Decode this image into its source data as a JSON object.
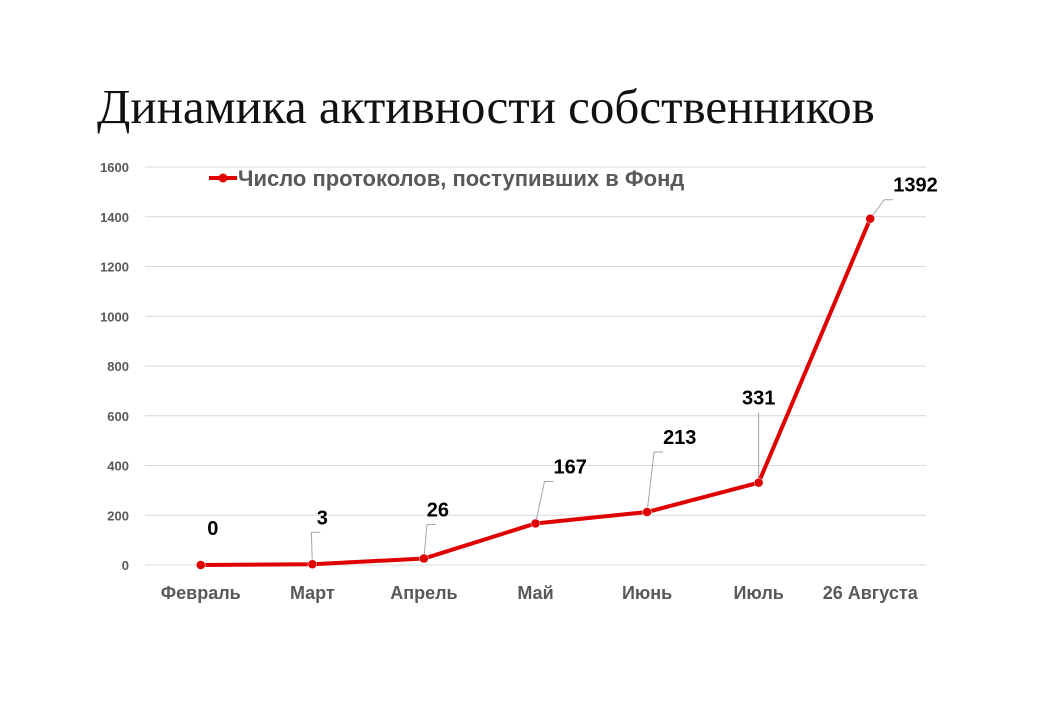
{
  "title": "Динамика активности собственников",
  "colors": {
    "series": "#e00000",
    "grid": "#d9d9d9",
    "axis_text": "#595959",
    "leader": "#a6a6a6"
  },
  "chart_data": {
    "type": "line",
    "categories": [
      "Февраль",
      "Март",
      "Апрель",
      "Май",
      "Июнь",
      "Июль",
      "26 Августа"
    ],
    "series": [
      {
        "name": "Число протоколов, поступивших в Фонд",
        "values": [
          0,
          3,
          26,
          167,
          213,
          331,
          1392
        ],
        "data_labels": [
          "0",
          "3",
          "26",
          "167",
          "213",
          "331",
          "1392"
        ]
      }
    ],
    "ylim": [
      0,
      1600
    ],
    "yticks": [
      0,
      200,
      400,
      600,
      800,
      1000,
      1200,
      1400,
      1600
    ],
    "grid": true,
    "legend": "top-left"
  }
}
